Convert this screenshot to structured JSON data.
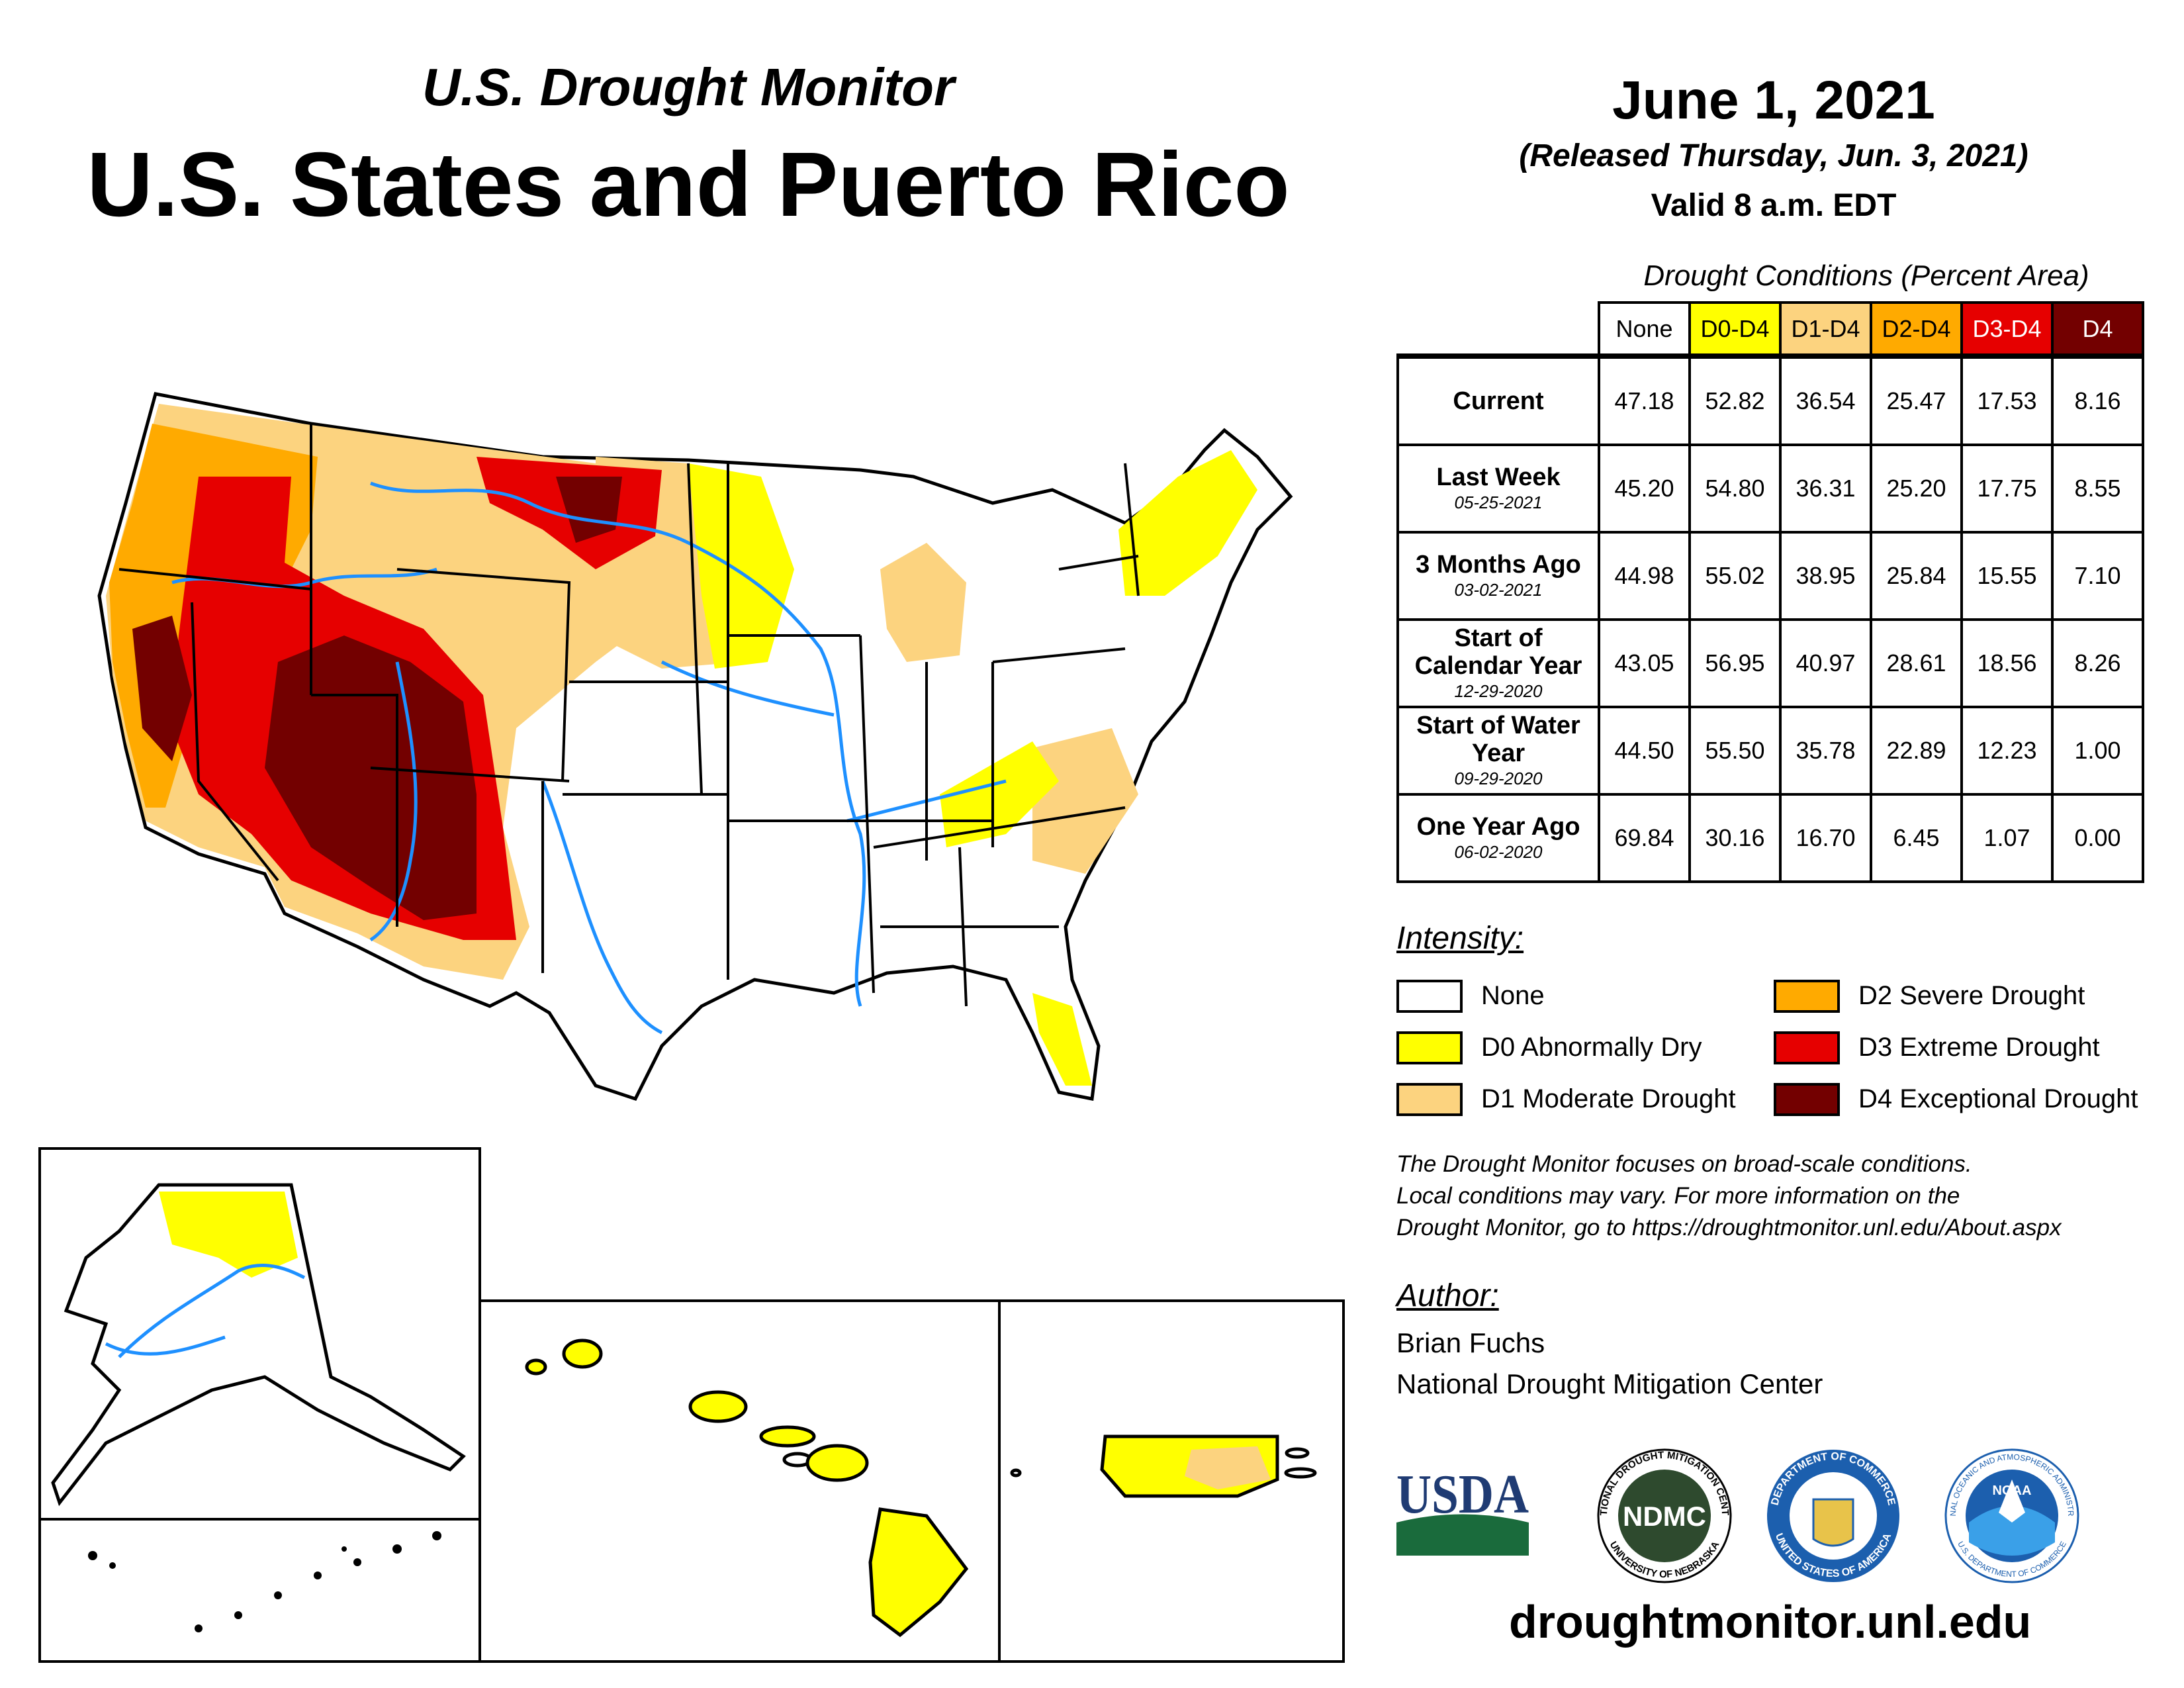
{
  "header": {
    "subtitle": "U.S. Drought Monitor",
    "title": "U.S. States and Puerto Rico",
    "date": "June 1, 2021",
    "released": "(Released Thursday, Jun. 3, 2021)",
    "valid": "Valid 8 a.m. EDT"
  },
  "table": {
    "caption": "Drought Conditions (Percent Area)",
    "columns": [
      "None",
      "D0-D4",
      "D1-D4",
      "D2-D4",
      "D3-D4",
      "D4"
    ],
    "column_colors": [
      "#ffffff",
      "#ffff00",
      "#fcd37f",
      "#ffaa00",
      "#e60000",
      "#730000"
    ],
    "rows": [
      {
        "label": "Current",
        "sub": "",
        "values": [
          "47.18",
          "52.82",
          "36.54",
          "25.47",
          "17.53",
          "8.16"
        ]
      },
      {
        "label": "Last Week",
        "sub": "05-25-2021",
        "values": [
          "45.20",
          "54.80",
          "36.31",
          "25.20",
          "17.75",
          "8.55"
        ]
      },
      {
        "label": "3 Months Ago",
        "sub": "03-02-2021",
        "values": [
          "44.98",
          "55.02",
          "38.95",
          "25.84",
          "15.55",
          "7.10"
        ]
      },
      {
        "label": "Start of Calendar Year",
        "sub": "12-29-2020",
        "values": [
          "43.05",
          "56.95",
          "40.97",
          "28.61",
          "18.56",
          "8.26"
        ]
      },
      {
        "label": "Start of Water Year",
        "sub": "09-29-2020",
        "values": [
          "44.50",
          "55.50",
          "35.78",
          "22.89",
          "12.23",
          "1.00"
        ]
      },
      {
        "label": "One Year Ago",
        "sub": "06-02-2020",
        "values": [
          "69.84",
          "30.16",
          "16.70",
          "6.45",
          "1.07",
          "0.00"
        ]
      }
    ]
  },
  "legend": {
    "heading": "Intensity:",
    "items": [
      {
        "label": "None",
        "color": "#ffffff"
      },
      {
        "label": "D0 Abnormally Dry",
        "color": "#ffff00"
      },
      {
        "label": "D1 Moderate Drought",
        "color": "#fcd37f"
      },
      {
        "label": "D2 Severe Drought",
        "color": "#ffaa00"
      },
      {
        "label": "D3 Extreme Drought",
        "color": "#e60000"
      },
      {
        "label": "D4 Exceptional Drought",
        "color": "#730000"
      }
    ]
  },
  "note": {
    "line1": "The Drought Monitor focuses on broad-scale conditions.",
    "line2": "Local conditions may vary. For more information on the",
    "line3": "Drought Monitor, go to https://droughtmonitor.unl.edu/About.aspx"
  },
  "author": {
    "heading": "Author:",
    "name": "Brian Fuchs",
    "org": "National Drought Mitigation Center"
  },
  "logos": {
    "usda": "USDA",
    "ndmc": "NDMC",
    "ndmc_ring_top": "NATIONAL DROUGHT MITIGATION CENTER",
    "ndmc_ring_bottom": "UNIVERSITY OF NEBRASKA",
    "commerce_ring_top": "DEPARTMENT OF COMMERCE",
    "commerce_ring_bottom": "UNITED STATES OF AMERICA",
    "noaa": "NOAA",
    "noaa_ring_top": "NATIONAL OCEANIC AND ATMOSPHERIC ADMINISTRATION",
    "noaa_ring_bottom": "U.S. DEPARTMENT OF COMMERCE"
  },
  "footer": {
    "url": "droughtmonitor.unl.edu"
  },
  "map_colors": {
    "none": "#ffffff",
    "d0": "#ffff00",
    "d1": "#fcd37f",
    "d2": "#ffaa00",
    "d3": "#e60000",
    "d4": "#730000",
    "rivers": "#1e90ff",
    "borders": "#000000"
  }
}
